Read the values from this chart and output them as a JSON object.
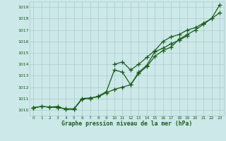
{
  "x": [
    0,
    1,
    2,
    3,
    4,
    5,
    6,
    7,
    8,
    9,
    10,
    11,
    12,
    13,
    14,
    15,
    16,
    17,
    18,
    19,
    20,
    21,
    22,
    23
  ],
  "line1_y": [
    1010.2,
    1010.3,
    1010.25,
    1010.2,
    1010.1,
    1010.1,
    1011.0,
    1011.05,
    1011.15,
    1011.5,
    1011.8,
    1012.0,
    1012.2,
    1013.2,
    1013.8,
    1014.7,
    1015.2,
    1015.5,
    1016.2,
    1016.6,
    1017.0,
    1017.5,
    1018.0,
    1018.5
  ],
  "line2_y": [
    1010.2,
    1010.3,
    1010.25,
    1010.3,
    1010.05,
    1010.05,
    1010.95,
    1011.0,
    1011.2,
    1011.6,
    1013.5,
    1013.3,
    1012.2,
    1013.3,
    1013.9,
    1015.1,
    1015.4,
    1015.8,
    1016.1,
    1016.5,
    null,
    null,
    null,
    null
  ],
  "line3_y": [
    1010.2,
    null,
    null,
    null,
    null,
    null,
    null,
    null,
    null,
    null,
    1014.0,
    1014.2,
    1013.5,
    1014.0,
    1014.6,
    1015.2,
    1016.0,
    1016.4,
    1016.6,
    1017.0,
    1017.2,
    1017.6,
    1018.0,
    1019.2
  ],
  "ylim": [
    1009.5,
    1019.5
  ],
  "xlim": [
    -0.5,
    23.5
  ],
  "yticks": [
    1010,
    1011,
    1012,
    1013,
    1014,
    1015,
    1016,
    1017,
    1018,
    1019
  ],
  "xticks": [
    0,
    1,
    2,
    3,
    4,
    5,
    6,
    7,
    8,
    9,
    10,
    11,
    12,
    13,
    14,
    15,
    16,
    17,
    18,
    19,
    20,
    21,
    22,
    23
  ],
  "line_color": "#1a5c1a",
  "bg_color": "#cce8e8",
  "grid_color": "#aacccc",
  "xlabel": "Graphe pression niveau de la mer (hPa)",
  "xlabel_color": "#1a5c1a",
  "tick_color": "#1a5c1a",
  "marker": "+",
  "marker_size": 4,
  "linewidth": 0.9
}
